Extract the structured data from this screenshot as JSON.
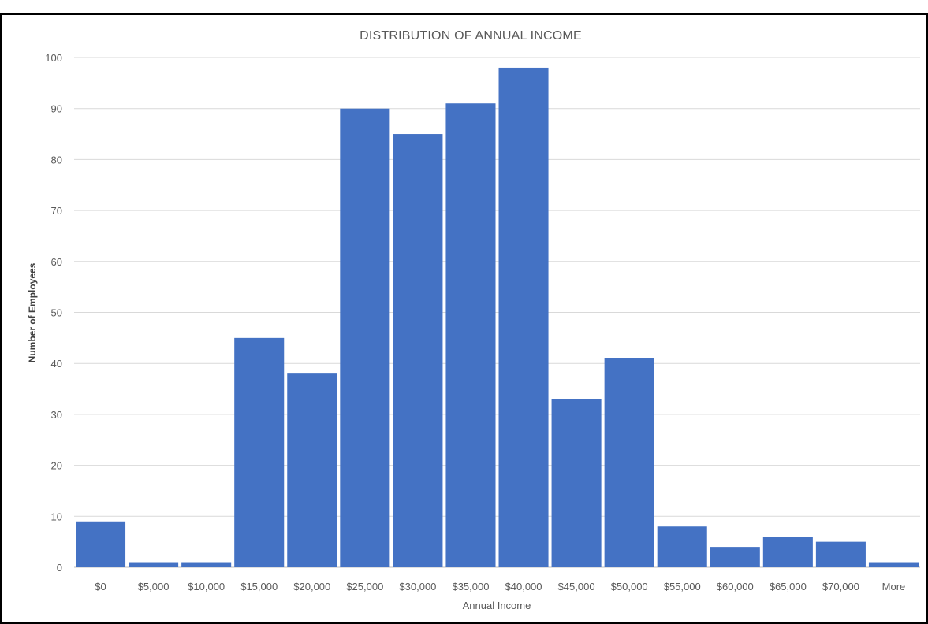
{
  "top_strip_text": "                ",
  "chart_data": {
    "type": "bar",
    "title": "DISTRIBUTION OF ANNUAL INCOME",
    "xlabel": "Annual Income",
    "ylabel": "Number of Employees",
    "categories": [
      "$0",
      "$5,000",
      "$10,000",
      "$15,000",
      "$20,000",
      "$25,000",
      "$30,000",
      "$35,000",
      "$40,000",
      "$45,000",
      "$50,000",
      "$55,000",
      "$60,000",
      "$65,000",
      "$70,000",
      "More"
    ],
    "values": [
      9,
      1,
      1,
      45,
      38,
      90,
      85,
      91,
      98,
      33,
      41,
      8,
      4,
      6,
      5,
      1
    ],
    "ylim": [
      0,
      100
    ],
    "yticks": [
      0,
      10,
      20,
      30,
      40,
      50,
      60,
      70,
      80,
      90,
      100
    ],
    "grid": true,
    "legend": "none",
    "bar_color": "#4472C4",
    "grid_color": "#D9D9D9"
  }
}
